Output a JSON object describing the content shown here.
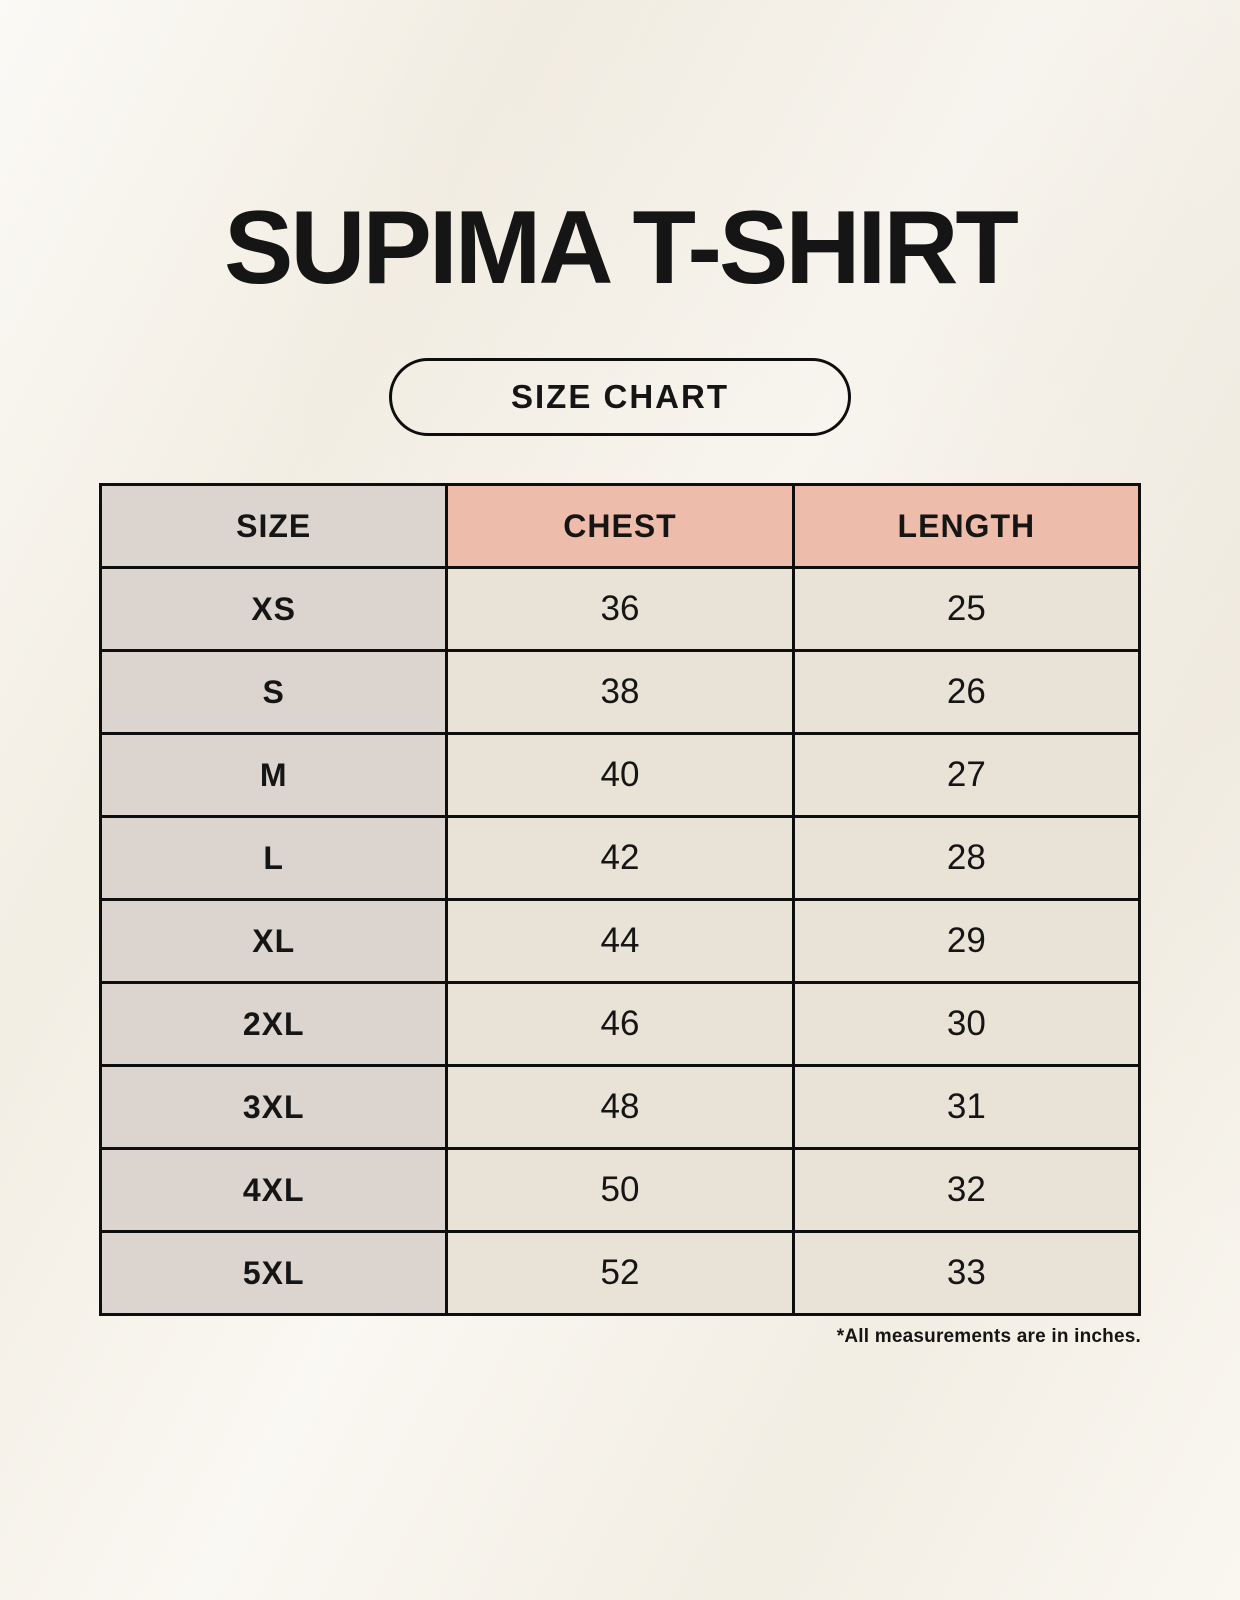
{
  "page": {
    "title": "SUPIMA T-SHIRT",
    "button_label": "SIZE CHART",
    "footnote": "*All measurements are in inches."
  },
  "chart_data": {
    "type": "table",
    "title": "SUPIMA T-SHIRT",
    "columns": [
      "SIZE",
      "CHEST",
      "LENGTH"
    ],
    "rows": [
      [
        "XS",
        "36",
        "25"
      ],
      [
        "S",
        "38",
        "26"
      ],
      [
        "M",
        "40",
        "27"
      ],
      [
        "L",
        "42",
        "28"
      ],
      [
        "XL",
        "44",
        "29"
      ],
      [
        "2XL",
        "46",
        "30"
      ],
      [
        "3XL",
        "48",
        "31"
      ],
      [
        "4XL",
        "50",
        "32"
      ],
      [
        "5XL",
        "52",
        "33"
      ]
    ],
    "units": "inches",
    "note": "*All measurements are in inches."
  },
  "colors": {
    "page_bg": "#f7f3ea",
    "header_accent": "#eebcab",
    "size_column_bg": "#dcd4ce",
    "cell_bg": "#e9e2d7",
    "border": "#0e0e0e",
    "text": "#151515"
  }
}
